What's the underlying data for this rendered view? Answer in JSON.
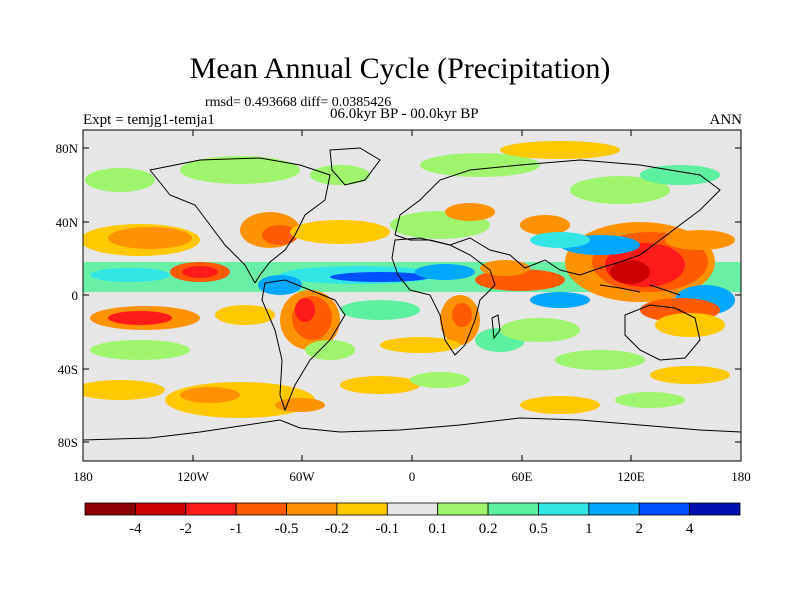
{
  "title": "Mean Annual Cycle (Precipitation)",
  "stats": "rmsd= 0.493668  diff= 0.0385426",
  "period": "06.0kyr BP - 00.0kyr BP",
  "experiment": "Expt = temjg1-temja1",
  "season": "ANN",
  "axes": {
    "lat_ticks": [
      "80N",
      "40N",
      "0",
      "40S",
      "80S"
    ],
    "lon_ticks": [
      "180",
      "120W",
      "60W",
      "0",
      "60E",
      "120E",
      "180"
    ]
  },
  "colorbar": {
    "colors": [
      "#8b0000",
      "#cc0000",
      "#ff1a1a",
      "#ff5a00",
      "#ff9200",
      "#ffc800",
      "#e6e6e6",
      "#a0f56e",
      "#5cf0a0",
      "#33e6e6",
      "#00a8ff",
      "#0050ff",
      "#0010b0"
    ],
    "labels": [
      "-4",
      "-2",
      "-1",
      "-0.5",
      "-0.2",
      "-0.1",
      "0.1",
      "0.2",
      "0.5",
      "1",
      "2",
      "4"
    ]
  }
}
